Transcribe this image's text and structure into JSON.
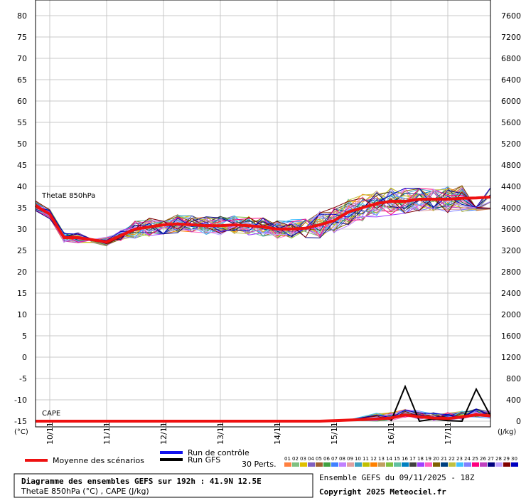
{
  "chart_data": {
    "type": "line",
    "left_axis": {
      "unit_label": "(°C)",
      "ticks": [
        -15,
        -10,
        -5,
        0,
        5,
        10,
        15,
        20,
        25,
        30,
        35,
        40,
        45,
        50,
        55,
        60,
        65,
        70,
        75,
        80
      ],
      "range": [
        -15,
        80
      ]
    },
    "right_axis": {
      "unit_label": "(J/kg)",
      "ticks": [
        0,
        400,
        800,
        1200,
        1600,
        2000,
        2400,
        2800,
        3200,
        3600,
        4000,
        4400,
        4800,
        5200,
        5600,
        6000,
        6400,
        6800,
        7200,
        7600
      ],
      "range": [
        0,
        7600
      ]
    },
    "x_range_hours": [
      0,
      192
    ],
    "x_ticks": [
      {
        "label": "10/11",
        "hour": 6
      },
      {
        "label": "11/11",
        "hour": 30
      },
      {
        "label": "12/11",
        "hour": 54
      },
      {
        "label": "13/11",
        "hour": 78
      },
      {
        "label": "14/11",
        "hour": 102
      },
      {
        "label": "15/11",
        "hour": 126
      },
      {
        "label": "16/11",
        "hour": 150
      },
      {
        "label": "17/11",
        "hour": 174
      }
    ],
    "grid": true,
    "annotations": [
      "ThetaE 850hPa",
      "CAPE"
    ],
    "thetae_mean": {
      "name": "Moyenne des scénarios",
      "x": [
        0,
        6,
        12,
        18,
        24,
        30,
        36,
        42,
        48,
        54,
        60,
        66,
        72,
        78,
        84,
        90,
        96,
        102,
        108,
        114,
        120,
        126,
        132,
        138,
        144,
        150,
        156,
        162,
        168,
        174,
        180,
        186,
        192
      ],
      "y": [
        35.5,
        33.5,
        28,
        28,
        27.5,
        27,
        28.5,
        30,
        30.5,
        31,
        31.2,
        31,
        30.8,
        30.8,
        31,
        30.8,
        30.5,
        30,
        30,
        30.2,
        31,
        32,
        34,
        35,
        36,
        36.5,
        36.5,
        37,
        37,
        37,
        37.2,
        37.3,
        37.5
      ]
    },
    "cape_mean": {
      "x": [
        0,
        12,
        24,
        36,
        48,
        60,
        72,
        84,
        96,
        108,
        120,
        132,
        144,
        150,
        156,
        162,
        168,
        174,
        180,
        186,
        192
      ],
      "y": [
        0,
        0,
        0,
        0,
        0,
        0,
        0,
        0,
        0,
        0,
        0,
        20,
        40,
        60,
        120,
        80,
        60,
        50,
        80,
        120,
        100
      ]
    },
    "cape_gfs": {
      "x": [
        150,
        156,
        162,
        168,
        174,
        180,
        186,
        192
      ],
      "y": [
        0,
        650,
        0,
        40,
        10,
        0,
        600,
        100
      ]
    }
  },
  "legend": {
    "mean_label": "Moyenne des scénarios",
    "control_label": "Run de contrôle",
    "gfs_label": "Run GFS",
    "perts_label": "30 Perts.",
    "pert_numbers": [
      "01",
      "02",
      "03",
      "04",
      "05",
      "06",
      "07",
      "08",
      "09",
      "10",
      "11",
      "12",
      "13",
      "14",
      "15",
      "16",
      "17",
      "18",
      "19",
      "20",
      "21",
      "22",
      "23",
      "24",
      "25",
      "26",
      "27",
      "28",
      "29",
      "30"
    ],
    "pert_colors": [
      "#ff8040",
      "#80c080",
      "#e0c000",
      "#8060c0",
      "#a06030",
      "#40a040",
      "#4080ff",
      "#c080ff",
      "#e0a0a0",
      "#40a0c0",
      "#c0c000",
      "#ff8000",
      "#c0a060",
      "#80c040",
      "#60c0a0",
      "#0080c0",
      "#404040",
      "#a040ff",
      "#ff60c0",
      "#806000",
      "#004080",
      "#c0c040",
      "#40c0ff",
      "#8080ff",
      "#ff0080",
      "#c040c0",
      "#000080",
      "#c0a0ff",
      "#800000",
      "#0000c0"
    ],
    "mean_color": "#ee1111",
    "control_color": "#1111ee",
    "gfs_color": "#000000"
  },
  "info_box": {
    "title": "Diagramme des ensembles GEFS sur 192h : 41.9N 12.5E",
    "subtitle": "ThetaE 850hPa (°C) , CAPE (J/kg)"
  },
  "footer": {
    "run": "Ensemble GEFS du 09/11/2025 - 18Z",
    "copyright": "Copyright 2025 Meteociel.fr"
  }
}
